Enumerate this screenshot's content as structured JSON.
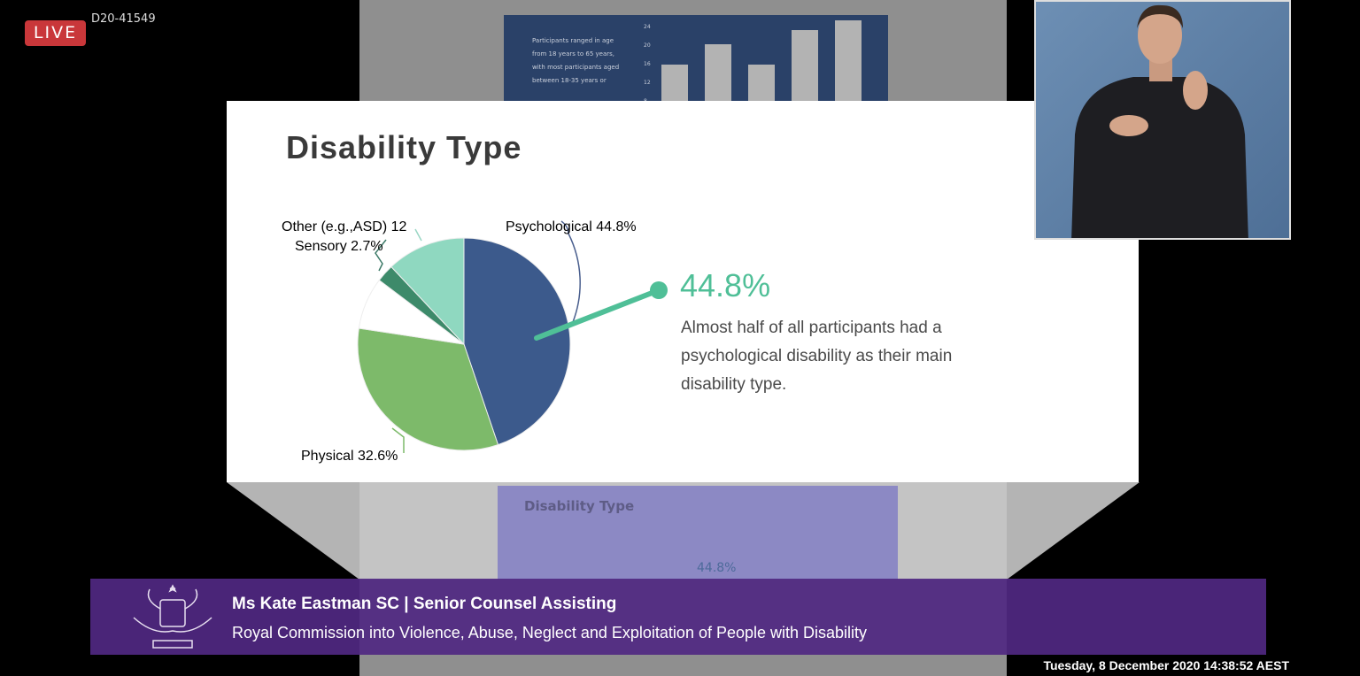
{
  "stream": {
    "live_label": "LIVE",
    "code": "D20-41549",
    "timestamp": "Tuesday, 8 December 2020 14:38:52 AEST"
  },
  "background_slide": {
    "text": "Participants ranged in age from 18 years to 65 years, with most participants aged between 18-35 years or",
    "ticks": [
      "24",
      "20",
      "16",
      "12",
      "8"
    ],
    "bar_values": [
      15,
      19,
      15,
      22,
      24
    ],
    "ghost_title": "Disability Type",
    "ghost_percent": "44.8%"
  },
  "slide": {
    "title": "Disability Type",
    "highlight": "44.8%",
    "description": "Almost half of all participants had a psychological disability as their main disability type."
  },
  "chart_data": {
    "type": "pie",
    "title": "Disability Type",
    "slices": [
      {
        "label": "Psychological 44.8%",
        "value": 44.8,
        "color": "#3c5a8c",
        "label_color": "#4a5f8e"
      },
      {
        "label": "Physical 32.6%",
        "value": 32.6,
        "color": "#7dba6a",
        "label_color": "#7dba6a"
      },
      {
        "label": "",
        "value": 7.9,
        "color": "#ffffff",
        "label_color": ""
      },
      {
        "label": "Sensory 2.7%",
        "value": 2.7,
        "color": "#3d8a6a",
        "label_color": "#3d7a68"
      },
      {
        "label": "Other (e.g.,ASD) 12",
        "value": 12,
        "color": "#8fd8c0",
        "label_color": "#9ad6c4"
      }
    ],
    "callout_color": "#4fbf97"
  },
  "banner": {
    "name": "Ms Kate Eastman SC | Senior Counsel Assisting",
    "organisation": "Royal Commission into Violence, Abuse, Neglect and Exploitation of People with Disability"
  }
}
